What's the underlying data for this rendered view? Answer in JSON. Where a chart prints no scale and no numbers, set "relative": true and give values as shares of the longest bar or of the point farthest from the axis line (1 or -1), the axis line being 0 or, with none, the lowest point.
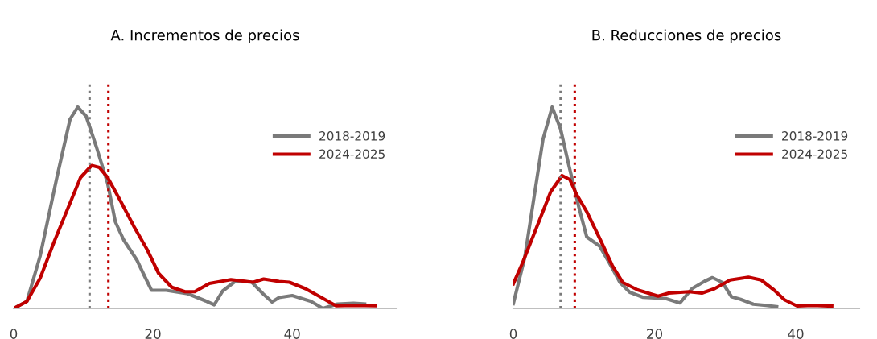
{
  "chart_data": [
    {
      "type": "line",
      "title": "A. Incrementos de precios",
      "relative": true,
      "xlim": [
        0,
        55
      ],
      "xticks": [
        0,
        20,
        40
      ],
      "tick_labels": "x",
      "legend": "right",
      "line_style": "solid",
      "marker": "none",
      "grid": false,
      "series": [
        {
          "name": "2018-2019",
          "color": "#7a7a7a",
          "x": [
            0,
            1.9,
            3.8,
            6.2,
            8.1,
            9.2,
            10.4,
            11.9,
            13.5,
            14.6,
            15.8,
            17.7,
            18.8,
            19.8,
            21.9,
            25,
            27.3,
            28.8,
            30,
            31.9,
            34.2,
            35.8,
            37.1,
            38.1,
            40,
            42.7,
            44.4,
            46.5,
            48.8,
            50.4
          ],
          "values": [
            0,
            0.035,
            0.26,
            0.65,
            0.94,
            1.0,
            0.955,
            0.8,
            0.62,
            0.43,
            0.34,
            0.24,
            0.16,
            0.09,
            0.09,
            0.073,
            0.041,
            0.018,
            0.086,
            0.137,
            0.13,
            0.073,
            0.032,
            0.054,
            0.064,
            0.035,
            0,
            0.022,
            0.026,
            0.022
          ]
        },
        {
          "name": "2024-2025",
          "color": "#c00000",
          "x": [
            0,
            1.9,
            3.8,
            5.8,
            7.7,
            9.6,
            11.2,
            12.3,
            13.5,
            15.4,
            17.3,
            19.2,
            20.8,
            22.7,
            24.6,
            26,
            28.1,
            31.2,
            34.4,
            35.9,
            38.1,
            39.6,
            41.9,
            44.2,
            46.3,
            48.8,
            51.9
          ],
          "values": [
            0,
            0.035,
            0.15,
            0.33,
            0.49,
            0.65,
            0.71,
            0.7,
            0.65,
            0.53,
            0.405,
            0.29,
            0.175,
            0.105,
            0.083,
            0.083,
            0.124,
            0.143,
            0.13,
            0.146,
            0.134,
            0.13,
            0.098,
            0.054,
            0.013,
            0.015,
            0.013
          ]
        }
      ],
      "ref_lines": [
        {
          "axis": "x",
          "value": 10.9,
          "color": "#7a7a7a",
          "line_style": "dotted"
        },
        {
          "axis": "x",
          "value": 13.6,
          "color": "#c00000",
          "line_style": "dotted"
        }
      ]
    },
    {
      "type": "line",
      "title": "B. Reducciones de precios",
      "relative": true,
      "xlim": [
        0,
        49
      ],
      "xticks": [
        0,
        20,
        40
      ],
      "tick_labels": "x",
      "legend": "right",
      "line_style": "solid",
      "marker": "none",
      "grid": false,
      "series": [
        {
          "name": "2018-2019",
          "color": "#7a7a7a",
          "x": [
            0,
            1.6,
            3.1,
            4.2,
            5.5,
            6.7,
            7.8,
            9.3,
            10.4,
            12.2,
            13.6,
            15.1,
            16.5,
            18.4,
            21.6,
            23.6,
            25.3,
            27.1,
            28.2,
            29.6,
            30.9,
            32.2,
            34,
            35.8,
            37.3
          ],
          "values": [
            0.024,
            0.25,
            0.59,
            0.84,
            1.0,
            0.89,
            0.72,
            0.5,
            0.355,
            0.31,
            0.226,
            0.129,
            0.08,
            0.055,
            0.049,
            0.027,
            0.098,
            0.135,
            0.153,
            0.129,
            0.058,
            0.045,
            0.021,
            0.015,
            0.009
          ]
        },
        {
          "name": "2024-2025",
          "color": "#c00000",
          "x": [
            0,
            1.3,
            3.5,
            5.3,
            6.9,
            8,
            8.9,
            10.4,
            12.2,
            14,
            15.5,
            17.6,
            20.5,
            22,
            24.9,
            26.7,
            28.5,
            30.7,
            33.3,
            35.1,
            36.9,
            38.4,
            40.2,
            42.4,
            45.1
          ],
          "values": [
            0.122,
            0.226,
            0.42,
            0.58,
            0.66,
            0.64,
            0.57,
            0.48,
            0.35,
            0.214,
            0.129,
            0.092,
            0.061,
            0.076,
            0.083,
            0.076,
            0.098,
            0.141,
            0.155,
            0.141,
            0.092,
            0.043,
            0.012,
            0.015,
            0.012
          ]
        }
      ],
      "ref_lines": [
        {
          "axis": "x",
          "value": 6.7,
          "color": "#7a7a7a",
          "line_style": "dotted"
        },
        {
          "axis": "x",
          "value": 8.7,
          "color": "#c00000",
          "line_style": "dotted"
        }
      ]
    }
  ]
}
